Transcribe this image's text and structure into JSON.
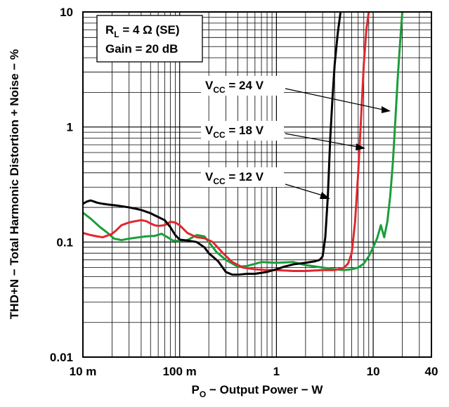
{
  "chart_data": {
    "type": "line",
    "xscale": "log",
    "yscale": "log",
    "xlim": [
      0.01,
      40
    ],
    "ylim": [
      0.01,
      10
    ],
    "grid": true,
    "x_ticks": [
      {
        "value": 0.01,
        "label": "10 m"
      },
      {
        "value": 0.1,
        "label": "100 m"
      },
      {
        "value": 1,
        "label": "1"
      },
      {
        "value": 10,
        "label": "10"
      },
      {
        "value": 40,
        "label": "40"
      }
    ],
    "y_ticks": [
      {
        "value": 10,
        "label": "10"
      },
      {
        "value": 1,
        "label": "1"
      },
      {
        "value": 0.1,
        "label": "0.1"
      },
      {
        "value": 0.01,
        "label": "0.01"
      }
    ],
    "xlabel": {
      "main": "P",
      "sub": "O",
      "rest": " − Output Power − W"
    },
    "ylabel": "THD+N − Total Harmonic Distortion + Noise − %",
    "conditions": {
      "line1": {
        "main": "R",
        "sub": "L",
        "rest": " = 4 Ω (SE)"
      },
      "line2": "Gain = 20 dB"
    },
    "series": [
      {
        "name": "V_CC = 24 V",
        "label": {
          "main": "V",
          "sub": "CC",
          "rest": " = 24 V"
        },
        "color": "#1a9e3a",
        "points": [
          [
            0.01,
            0.18
          ],
          [
            0.012,
            0.16
          ],
          [
            0.015,
            0.135
          ],
          [
            0.018,
            0.12
          ],
          [
            0.021,
            0.107
          ],
          [
            0.025,
            0.104
          ],
          [
            0.03,
            0.107
          ],
          [
            0.038,
            0.11
          ],
          [
            0.045,
            0.112
          ],
          [
            0.055,
            0.113
          ],
          [
            0.065,
            0.118
          ],
          [
            0.075,
            0.11
          ],
          [
            0.085,
            0.103
          ],
          [
            0.1,
            0.102
          ],
          [
            0.12,
            0.104
          ],
          [
            0.15,
            0.115
          ],
          [
            0.18,
            0.112
          ],
          [
            0.21,
            0.095
          ],
          [
            0.24,
            0.082
          ],
          [
            0.3,
            0.07
          ],
          [
            0.4,
            0.061
          ],
          [
            0.5,
            0.062
          ],
          [
            0.7,
            0.067
          ],
          [
            1,
            0.066
          ],
          [
            1.5,
            0.067
          ],
          [
            2,
            0.063
          ],
          [
            3,
            0.06
          ],
          [
            4,
            0.058
          ],
          [
            5,
            0.057
          ],
          [
            6,
            0.058
          ],
          [
            7,
            0.06
          ],
          [
            8,
            0.065
          ],
          [
            9,
            0.075
          ],
          [
            10,
            0.09
          ],
          [
            11,
            0.108
          ],
          [
            12,
            0.14
          ],
          [
            13,
            0.11
          ],
          [
            14,
            0.15
          ],
          [
            15,
            0.25
          ],
          [
            16,
            0.5
          ],
          [
            17,
            1.2
          ],
          [
            18,
            2.8
          ],
          [
            19,
            5.5
          ],
          [
            20,
            10
          ]
        ]
      },
      {
        "name": "V_CC = 18 V",
        "label": {
          "main": "V",
          "sub": "CC",
          "rest": " = 18 V"
        },
        "color": "#e0282e",
        "points": [
          [
            0.01,
            0.12
          ],
          [
            0.012,
            0.115
          ],
          [
            0.014,
            0.112
          ],
          [
            0.016,
            0.11
          ],
          [
            0.018,
            0.114
          ],
          [
            0.02,
            0.118
          ],
          [
            0.022,
            0.126
          ],
          [
            0.025,
            0.14
          ],
          [
            0.03,
            0.148
          ],
          [
            0.035,
            0.152
          ],
          [
            0.04,
            0.155
          ],
          [
            0.045,
            0.152
          ],
          [
            0.05,
            0.145
          ],
          [
            0.055,
            0.14
          ],
          [
            0.06,
            0.138
          ],
          [
            0.07,
            0.14
          ],
          [
            0.08,
            0.15
          ],
          [
            0.09,
            0.148
          ],
          [
            0.1,
            0.14
          ],
          [
            0.12,
            0.12
          ],
          [
            0.15,
            0.11
          ],
          [
            0.18,
            0.108
          ],
          [
            0.22,
            0.1
          ],
          [
            0.28,
            0.08
          ],
          [
            0.35,
            0.067
          ],
          [
            0.45,
            0.06
          ],
          [
            0.6,
            0.058
          ],
          [
            0.8,
            0.057
          ],
          [
            1,
            0.057
          ],
          [
            1.5,
            0.056
          ],
          [
            2,
            0.056
          ],
          [
            3,
            0.057
          ],
          [
            4,
            0.057
          ],
          [
            5,
            0.06
          ],
          [
            5.5,
            0.065
          ],
          [
            6,
            0.08
          ],
          [
            6.5,
            0.15
          ],
          [
            7,
            0.4
          ],
          [
            7.5,
            1.2
          ],
          [
            8,
            3.5
          ],
          [
            8.5,
            7
          ],
          [
            9,
            10
          ]
        ]
      },
      {
        "name": "V_CC = 12 V",
        "label": {
          "main": "V",
          "sub": "CC",
          "rest": " = 12 V"
        },
        "color": "#000000",
        "points": [
          [
            0.01,
            0.215
          ],
          [
            0.011,
            0.225
          ],
          [
            0.012,
            0.23
          ],
          [
            0.013,
            0.225
          ],
          [
            0.014,
            0.22
          ],
          [
            0.016,
            0.215
          ],
          [
            0.018,
            0.212
          ],
          [
            0.022,
            0.208
          ],
          [
            0.025,
            0.205
          ],
          [
            0.03,
            0.2
          ],
          [
            0.035,
            0.195
          ],
          [
            0.04,
            0.19
          ],
          [
            0.05,
            0.178
          ],
          [
            0.06,
            0.165
          ],
          [
            0.07,
            0.155
          ],
          [
            0.08,
            0.135
          ],
          [
            0.09,
            0.115
          ],
          [
            0.1,
            0.105
          ],
          [
            0.12,
            0.103
          ],
          [
            0.15,
            0.1
          ],
          [
            0.18,
            0.09
          ],
          [
            0.2,
            0.08
          ],
          [
            0.25,
            0.068
          ],
          [
            0.3,
            0.055
          ],
          [
            0.35,
            0.052
          ],
          [
            0.4,
            0.052
          ],
          [
            0.5,
            0.053
          ],
          [
            0.6,
            0.053
          ],
          [
            0.7,
            0.054
          ],
          [
            0.8,
            0.055
          ],
          [
            1,
            0.058
          ],
          [
            1.2,
            0.061
          ],
          [
            1.5,
            0.064
          ],
          [
            2,
            0.066
          ],
          [
            2.5,
            0.068
          ],
          [
            2.8,
            0.07
          ],
          [
            3,
            0.075
          ],
          [
            3.2,
            0.11
          ],
          [
            3.4,
            0.25
          ],
          [
            3.6,
            0.8
          ],
          [
            3.8,
            1.8
          ],
          [
            4,
            3.5
          ],
          [
            4.3,
            6.5
          ],
          [
            4.6,
            10
          ]
        ]
      }
    ]
  }
}
